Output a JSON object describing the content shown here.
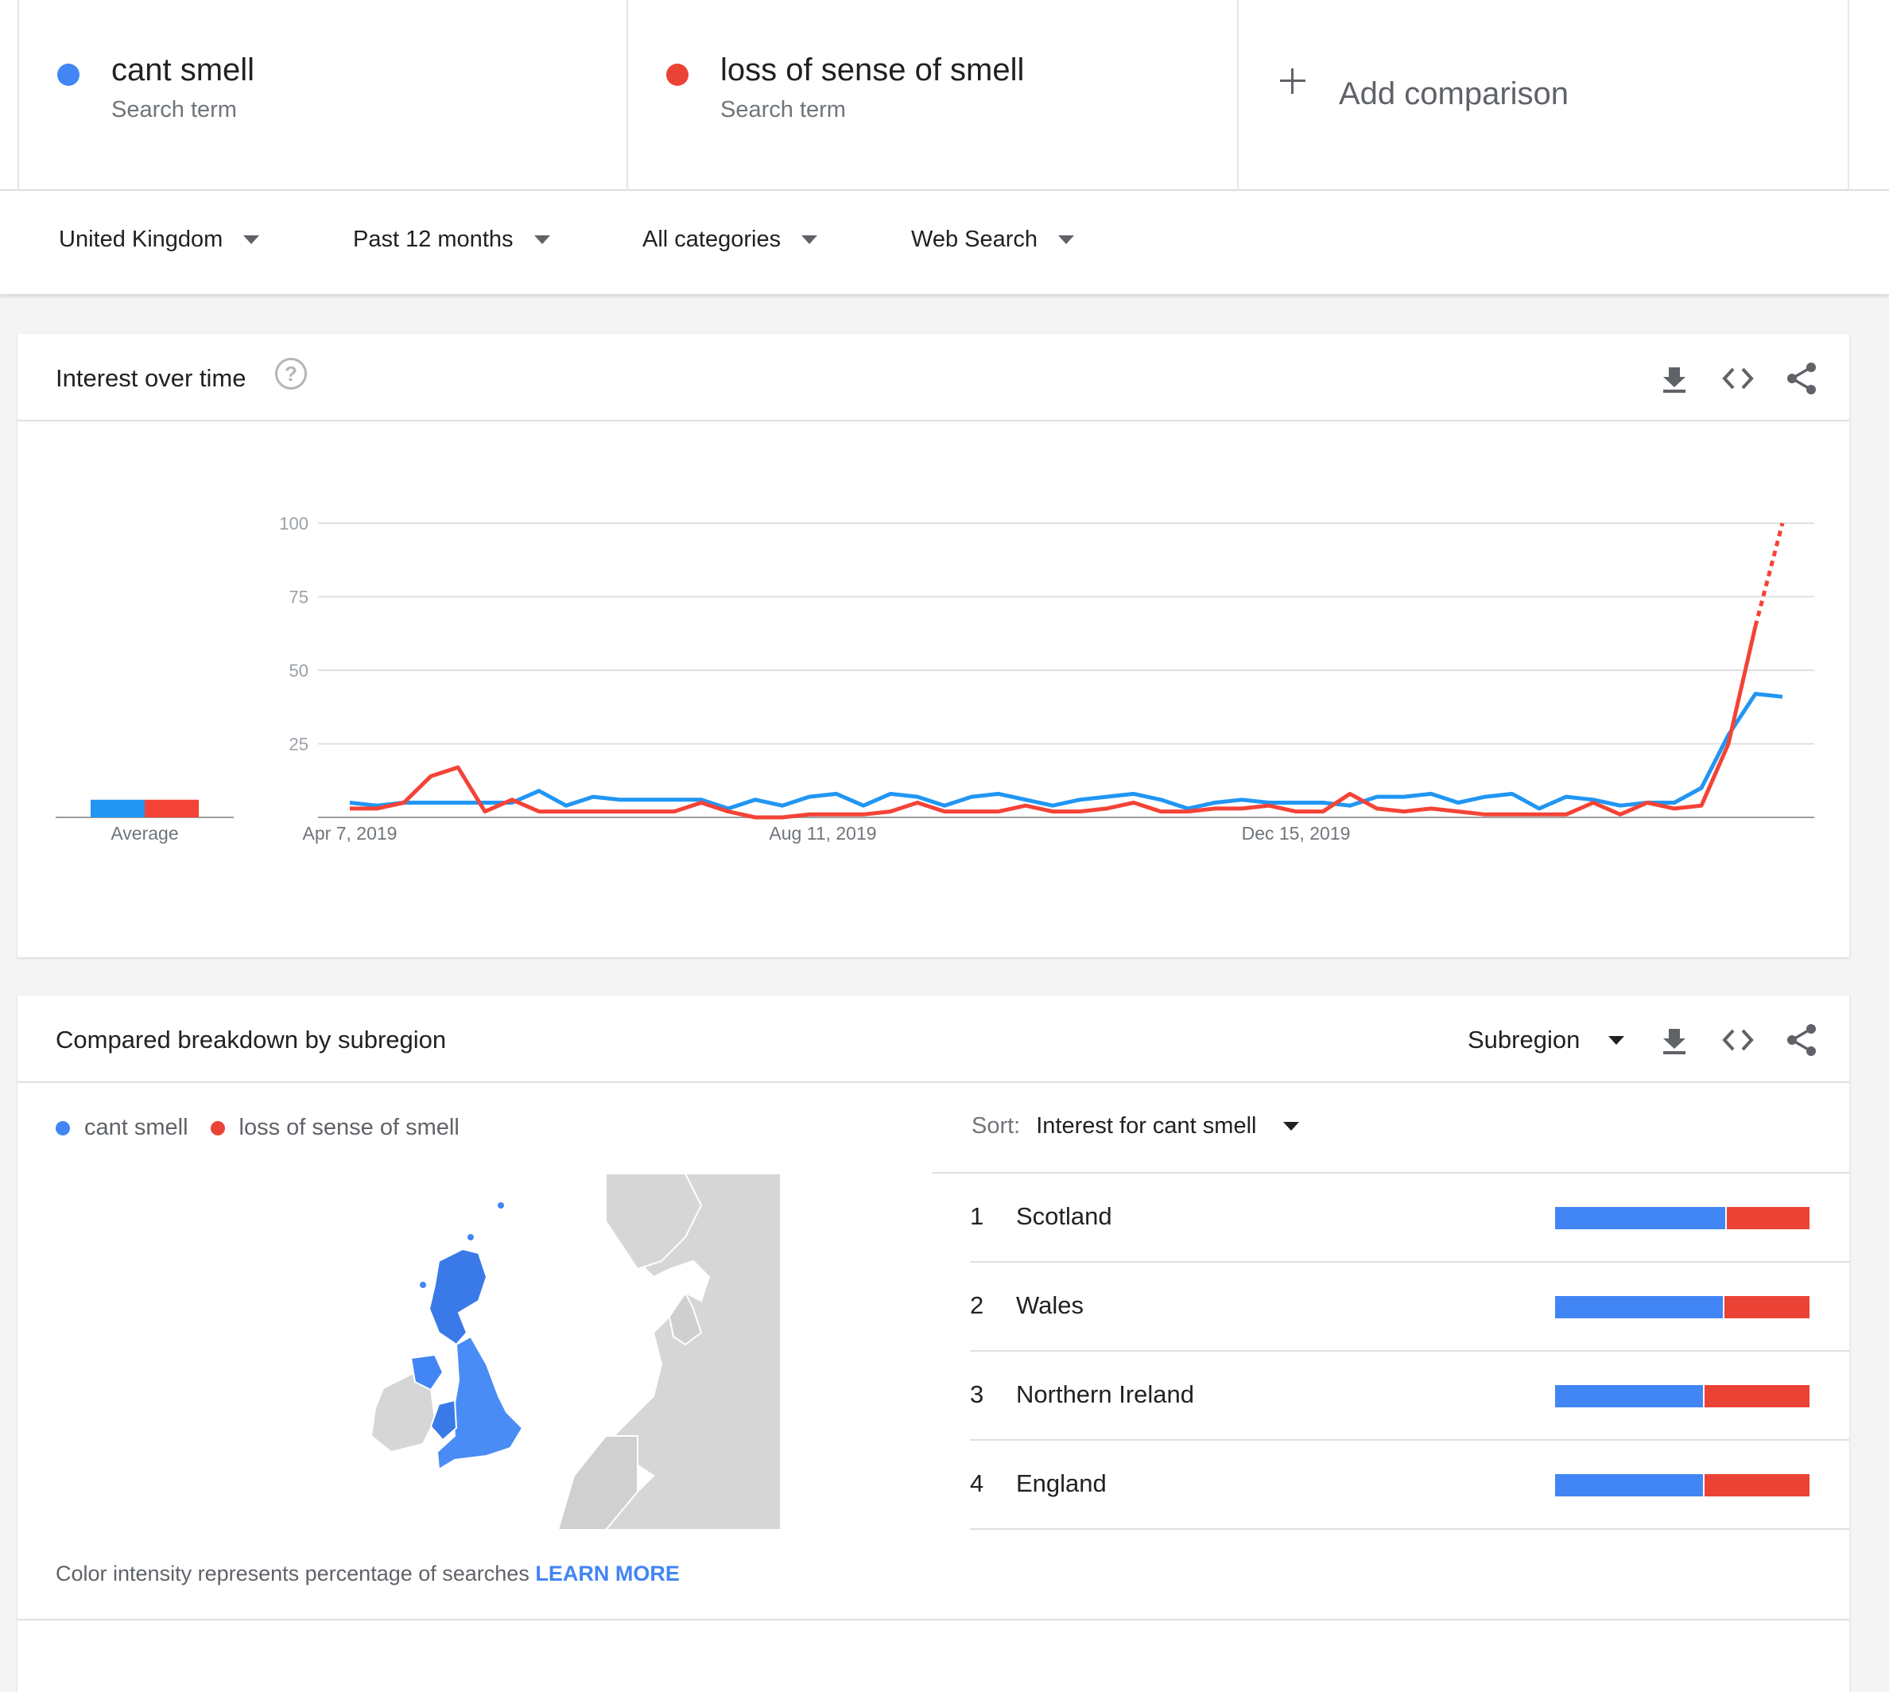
{
  "colors": {
    "blue": "#4285f4",
    "red": "#ea4335",
    "chart_blue": "#2196f3",
    "chart_red": "#f44336"
  },
  "terms": [
    {
      "name": "cant smell",
      "subtitle": "Search term"
    },
    {
      "name": "loss of sense of smell",
      "subtitle": "Search term"
    }
  ],
  "add_comparison": {
    "label": "Add comparison",
    "icon": "plus-icon"
  },
  "filters": {
    "region": "United Kingdom",
    "time": "Past 12 months",
    "category": "All categories",
    "search_type": "Web Search"
  },
  "interest_card": {
    "title": "Interest over time",
    "help_icon": "?",
    "icons": [
      "download-icon",
      "embed-code-icon",
      "share-icon"
    ],
    "average_label": "Average"
  },
  "chart_data": {
    "type": "line",
    "x_tick_labels": [
      "Apr 7, 2019",
      "Aug 11, 2019",
      "Dec 15, 2019"
    ],
    "y_ticks": [
      25,
      50,
      75,
      100
    ],
    "ylim": [
      0,
      100
    ],
    "grid": true,
    "series": [
      {
        "name": "cant smell",
        "color": "#2196f3",
        "values": [
          5,
          4,
          5,
          5,
          5,
          5,
          5,
          9,
          4,
          7,
          6,
          6,
          6,
          6,
          3,
          6,
          4,
          7,
          8,
          4,
          8,
          7,
          4,
          7,
          8,
          6,
          4,
          6,
          7,
          8,
          6,
          3,
          5,
          6,
          5,
          5,
          5,
          4,
          7,
          7,
          8,
          5,
          7,
          8,
          3,
          7,
          6,
          4,
          5,
          5,
          10,
          28,
          42,
          41
        ],
        "average": 6
      },
      {
        "name": "loss of sense of smell",
        "color": "#f44336",
        "values": [
          3,
          3,
          5,
          14,
          17,
          2,
          6,
          2,
          2,
          2,
          2,
          2,
          2,
          5,
          2,
          0,
          0,
          1,
          1,
          1,
          2,
          5,
          2,
          2,
          2,
          4,
          2,
          2,
          3,
          5,
          2,
          2,
          3,
          3,
          4,
          2,
          2,
          8,
          3,
          2,
          3,
          2,
          1,
          1,
          1,
          1,
          5,
          1,
          5,
          3,
          4,
          25,
          65,
          100
        ],
        "average": 6,
        "partial_from_index": 52
      }
    ],
    "averages": {
      "cant smell": 6,
      "loss of sense of smell": 6
    }
  },
  "breakdown_card": {
    "title": "Compared breakdown by subregion",
    "dropdown": "Subregion",
    "legend": [
      "cant smell",
      "loss of sense of smell"
    ],
    "sort_label": "Sort:",
    "sort_value": "Interest for cant smell",
    "note": "Color intensity represents percentage of searches",
    "learn_more": "LEARN MORE",
    "regions": [
      {
        "rank": "1",
        "name": "Scotland",
        "cant_smell_share": 0.67,
        "loss_share": 0.33
      },
      {
        "rank": "2",
        "name": "Wales",
        "cant_smell_share": 0.66,
        "loss_share": 0.34
      },
      {
        "rank": "3",
        "name": "Northern Ireland",
        "cant_smell_share": 0.58,
        "loss_share": 0.42
      },
      {
        "rank": "4",
        "name": "England",
        "cant_smell_share": 0.58,
        "loss_share": 0.42
      }
    ]
  }
}
